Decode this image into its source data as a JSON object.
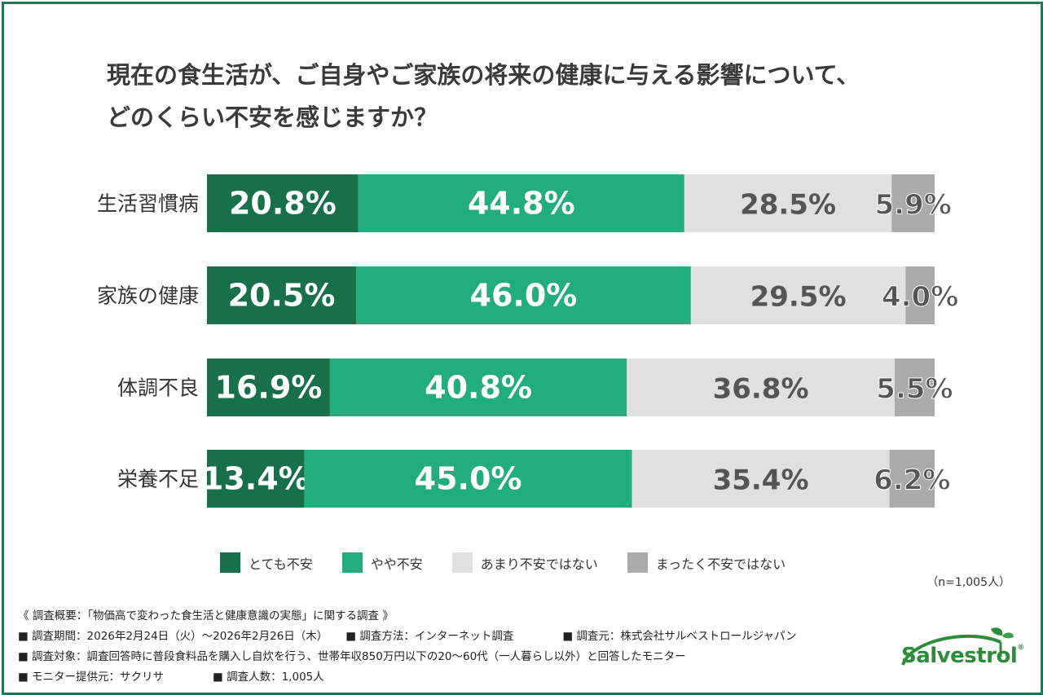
{
  "title_lines": [
    "現在の食生活が、ご自身やご家族の将来の健康に与える影響について、",
    "どのくらい不安を感じますか？"
  ],
  "colors": {
    "very_anxious": "#17704a",
    "somewhat_anxious": "#22ad7e",
    "not_very_anxious": "#e0e0e0",
    "not_at_all_anxious": "#ababab",
    "frame": "#1e7a55"
  },
  "chart_data": {
    "type": "bar",
    "orientation": "horizontal-stacked-100",
    "title": "現在の食生活が、ご自身やご家族の将来の健康に与える影響について、どのくらい不安を感じますか？",
    "categories": [
      "生活習慣病",
      "家族の健康",
      "体調不良",
      "栄養不足"
    ],
    "series": [
      {
        "name": "とても不安",
        "values": [
          20.8,
          20.5,
          16.9,
          13.4
        ],
        "labels": [
          "20.8%",
          "20.5%",
          "16.9%",
          "13.4%"
        ]
      },
      {
        "name": "やや不安",
        "values": [
          44.8,
          46.0,
          40.8,
          45.0
        ],
        "labels": [
          "44.8%",
          "46.0%",
          "40.8%",
          "45.0%"
        ]
      },
      {
        "name": "あまり不安ではない",
        "values": [
          28.5,
          29.5,
          36.8,
          35.4
        ],
        "labels": [
          "28.5%",
          "29.5%",
          "36.8%",
          "35.4%"
        ]
      },
      {
        "name": "まったく不安ではない",
        "values": [
          5.9,
          4.0,
          5.5,
          6.2
        ],
        "labels": [
          "5.9%",
          "4.0%",
          "5.5%",
          "6.2%"
        ]
      }
    ],
    "xlim": [
      0,
      100
    ],
    "legend_position": "bottom"
  },
  "sample_size": "（n=1,005人）",
  "notes": {
    "survey": "《 調査概要：「物価高で変わった食生活と健康意識の実態」に関する調査 》",
    "period": "■ 調査期間：2026年2月24日（火）～2026年2月26日（木）",
    "method": "■ 調査方法：インターネット調査",
    "organizer": "■ 調査元：株式会社サルベストロールジャパン",
    "target": "■ 調査対象：調査回答時に普段食料品を購入し自炊を行う、世帯年収850万円以下の20～60代（一人暮らし以外）と回答したモニター",
    "provider": "■ モニター提供元：サクリサ",
    "count": "■ 調査人数：1,005人"
  },
  "logo": {
    "text": "Salvestrol",
    "mark": "®"
  }
}
